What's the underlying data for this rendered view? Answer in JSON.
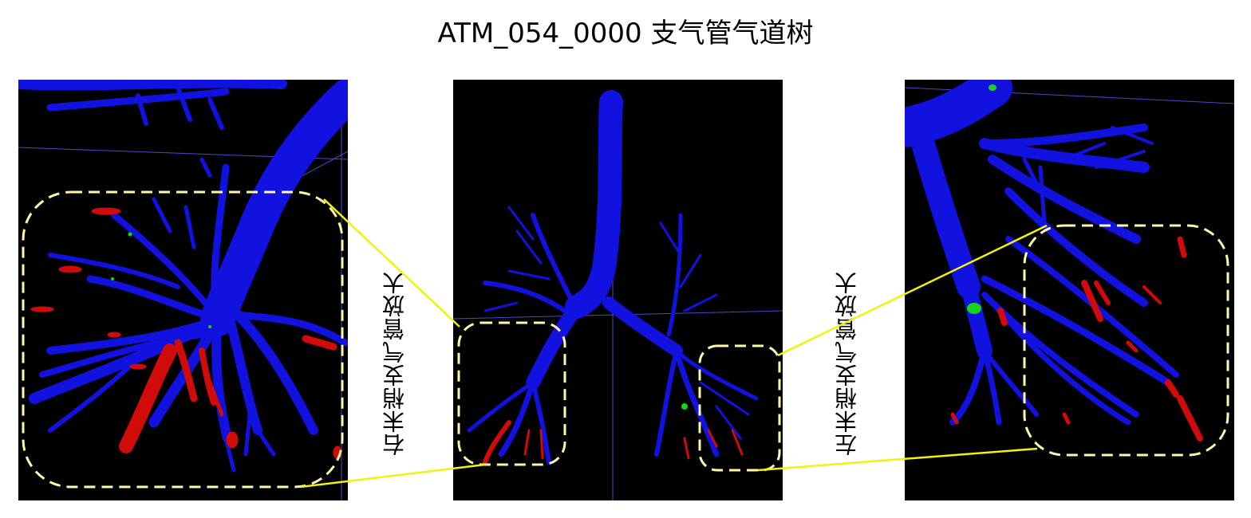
{
  "title": "ATM_054_0000 支气管气道树",
  "labels": {
    "right_zoom": "右末梢支气管放大",
    "left_zoom": "左末梢支气管放大"
  },
  "colors": {
    "airway": "#1010e6",
    "leak": "#d10a0a",
    "green": "#18d418",
    "dash": "#fff7a8",
    "connector": "#f2f20a",
    "background": "#000000"
  }
}
